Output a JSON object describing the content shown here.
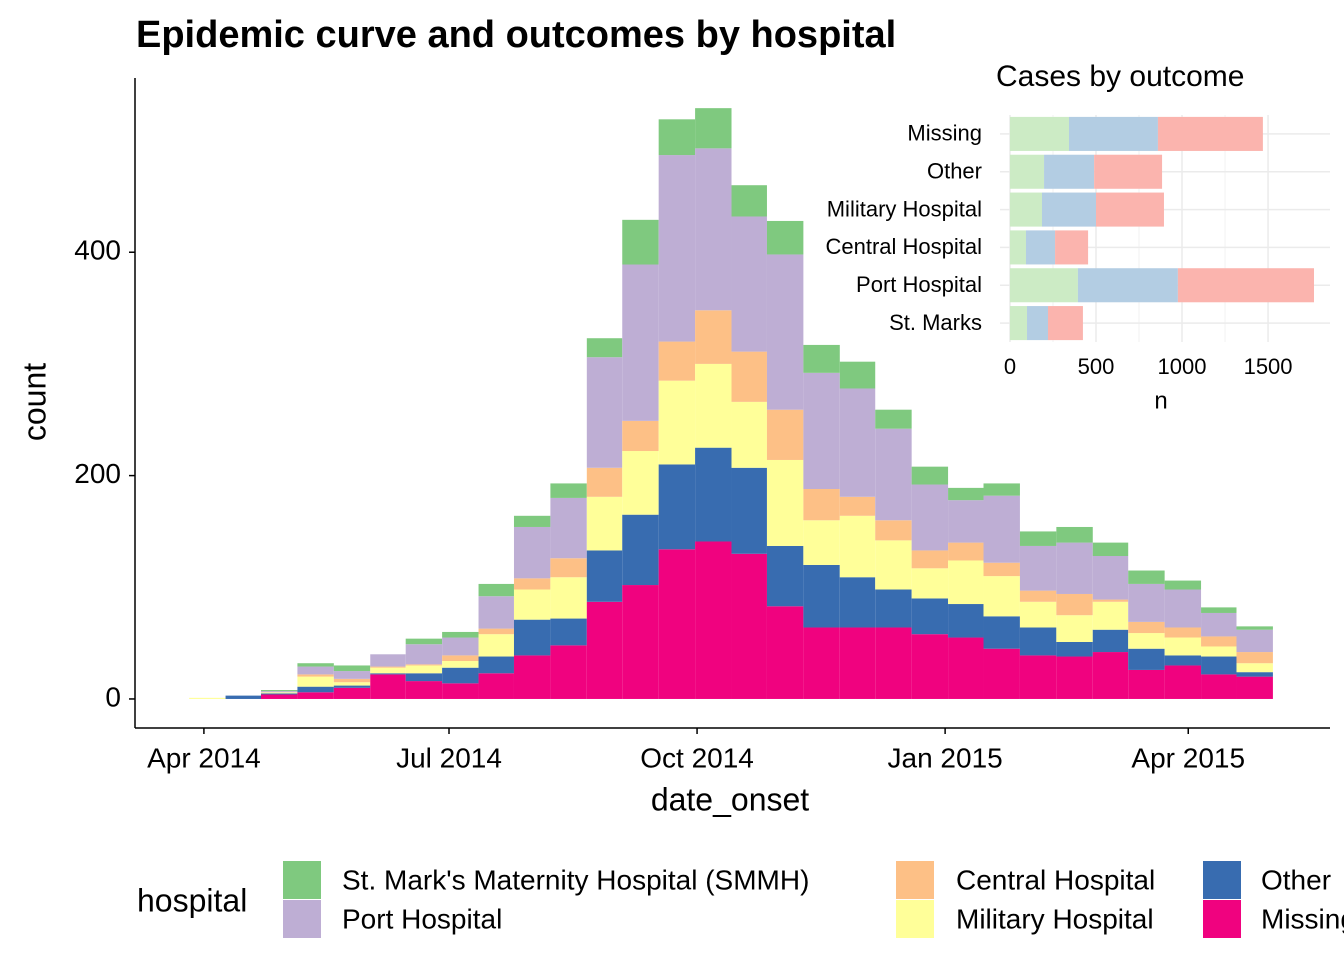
{
  "chart_data": [
    {
      "type": "histogram",
      "stacked": true,
      "title": "Epidemic curve and outcomes by hospital",
      "x_label": "date_onset",
      "y_label": "count",
      "legend_title": "hospital",
      "legend": "bottom",
      "bins": [
        2014.232,
        2014.269,
        2014.305,
        2014.342,
        2014.379,
        2014.416,
        2014.452,
        2014.489,
        2014.526,
        2014.562,
        2014.599,
        2014.636,
        2014.672,
        2014.709,
        2014.746,
        2014.783,
        2014.819,
        2014.856,
        2014.893,
        2014.929,
        2014.966,
        2015.003,
        2015.039,
        2015.076,
        2015.113,
        2015.15,
        2015.186,
        2015.223,
        2015.26,
        2015.296,
        2015.333
      ],
      "series": [
        {
          "name": "St. Mark's Maternity Hospital (SMMH)",
          "color": "#7fc97f",
          "values": [
            0,
            0,
            1,
            3,
            5,
            0,
            5,
            5,
            11,
            10,
            13,
            17,
            40,
            32,
            36,
            28,
            30,
            25,
            24,
            17,
            16,
            11,
            11,
            13,
            14,
            12,
            12,
            8,
            5,
            3
          ]
        },
        {
          "name": "Port Hospital",
          "color": "#beaed4",
          "values": [
            0,
            0,
            1,
            7,
            7,
            11,
            18,
            16,
            29,
            46,
            54,
            99,
            140,
            167,
            145,
            121,
            139,
            104,
            97,
            82,
            59,
            38,
            60,
            40,
            46,
            39,
            34,
            34,
            21,
            20
          ]
        },
        {
          "name": "Central Hospital",
          "color": "#fdc086",
          "values": [
            0,
            0,
            0,
            2,
            3,
            1,
            1,
            5,
            5,
            10,
            17,
            26,
            27,
            35,
            48,
            45,
            45,
            28,
            17,
            18,
            16,
            16,
            12,
            10,
            19,
            2,
            10,
            9,
            9,
            10
          ]
        },
        {
          "name": "Military Hospital",
          "color": "#ffff99",
          "values": [
            1,
            0,
            1,
            9,
            3,
            5,
            7,
            6,
            20,
            27,
            37,
            48,
            57,
            75,
            75,
            59,
            77,
            40,
            55,
            44,
            27,
            39,
            36,
            23,
            24,
            25,
            14,
            16,
            9,
            8
          ]
        },
        {
          "name": "Other",
          "color": "#386cb0",
          "values": [
            0,
            3,
            1,
            5,
            2,
            1,
            7,
            14,
            15,
            32,
            24,
            46,
            63,
            76,
            84,
            77,
            54,
            56,
            45,
            34,
            32,
            30,
            29,
            25,
            13,
            20,
            19,
            9,
            16,
            4
          ]
        },
        {
          "name": "Missing",
          "color": "#f0027f",
          "values": [
            0,
            0,
            4,
            6,
            10,
            22,
            16,
            14,
            23,
            39,
            48,
            87,
            102,
            134,
            141,
            130,
            83,
            64,
            64,
            64,
            58,
            55,
            45,
            39,
            38,
            42,
            26,
            30,
            22,
            20
          ]
        }
      ],
      "xlim": [
        2014.177,
        2015.391
      ],
      "xticks": [
        {
          "value": 2014.247,
          "label": "Apr 2014"
        },
        {
          "value": 2014.496,
          "label": "Jul 2014"
        },
        {
          "value": 2014.748,
          "label": "Oct 2014"
        },
        {
          "value": 2015,
          "label": "Jan 2015"
        },
        {
          "value": 2015.247,
          "label": "Apr 2015"
        }
      ],
      "ylim": [
        -26,
        556
      ],
      "yticks": [
        0,
        200,
        400
      ],
      "grid": false
    },
    {
      "type": "bar",
      "orientation": "horizontal",
      "stacked": true,
      "title": "Cases by outcome",
      "x_label": "n",
      "categories": [
        "Missing",
        "Other",
        "Military Hospital",
        "Central Hospital",
        "Port Hospital",
        "St. Marks"
      ],
      "series": [
        {
          "color": "#ccebc5",
          "values": [
            343,
            198,
            186,
            93,
            395,
            99
          ]
        },
        {
          "color": "#b3cde3",
          "values": [
            517,
            291,
            314,
            169,
            581,
            122
          ]
        },
        {
          "color": "#fbb4ae",
          "values": [
            610,
            395,
            395,
            192,
            791,
            203
          ]
        }
      ],
      "xlim": [
        -58,
        1860
      ],
      "xticks": [
        0,
        500,
        1000,
        1500
      ],
      "grid": true
    }
  ]
}
